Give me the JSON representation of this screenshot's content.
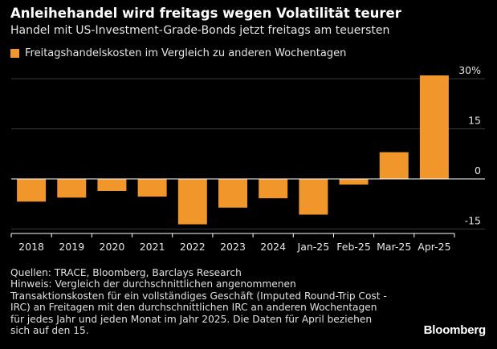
{
  "header": {
    "title": "Anleihehandel wird freitags wegen Volatilität teurer",
    "subtitle": "Handel mit US-Investment-Grade-Bonds jetzt freitags am teuersten"
  },
  "colors": {
    "bar": "#f0962a",
    "background": "#000000",
    "axis": "#ffffff",
    "gridline": "#3a3a3a"
  },
  "chart_data": {
    "type": "bar",
    "categories": [
      "2018",
      "2019",
      "2020",
      "2021",
      "2022",
      "2023",
      "2024",
      "Jan-25",
      "Feb-25",
      "Mar-25",
      "Apr-25"
    ],
    "series": [
      {
        "name": "Freitagshandelskosten im Vergleich zu anderen Wochentagen",
        "values": [
          -6.8,
          -5.6,
          -3.6,
          -5.3,
          -13.6,
          -8.6,
          -5.8,
          -10.7,
          -1.7,
          8.0,
          31.0
        ]
      }
    ],
    "yticks": [
      30,
      15,
      0,
      -15
    ],
    "ytick_labels": [
      "30%",
      "15",
      "0",
      "-15"
    ],
    "ylim": [
      -17,
      33
    ],
    "grid": true,
    "legend_position": "top-left"
  },
  "footer": {
    "sources": "Quellen: TRACE, Bloomberg, Barclays Research",
    "note": "Hinweis: Vergleich der durchschnittlichen angenommenen Transaktionskosten für ein vollständiges Geschäft (Imputed Round-Trip Cost - IRC) an Freitagen mit den durchschnittlichen IRC an anderen Wochentagen für jedes Jahr und jeden Monat im Jahr 2025. Die Daten für April beziehen sich auf den 15.",
    "brand": "Bloomberg"
  }
}
